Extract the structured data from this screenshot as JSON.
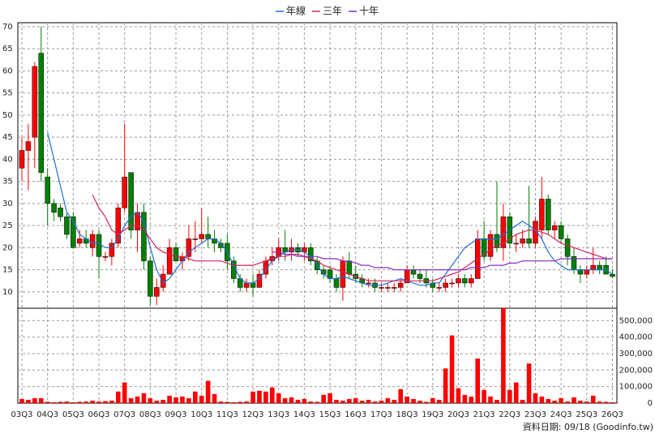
{
  "chart_data": {
    "type": "candlestick",
    "grid": true,
    "legend_position": "top",
    "note": "資料日期: 09/18 (Goodinfo.tw)",
    "categories": [
      "03Q3",
      null,
      null,
      null,
      "04Q3",
      null,
      null,
      null,
      "05Q3",
      null,
      null,
      null,
      "06Q3",
      null,
      null,
      null,
      "07Q3",
      null,
      null,
      null,
      "08Q3",
      null,
      null,
      null,
      "09Q3",
      null,
      null,
      null,
      "10Q3",
      null,
      null,
      null,
      "11Q3",
      null,
      null,
      null,
      "12Q3",
      null,
      null,
      null,
      "13Q3",
      null,
      null,
      null,
      "14Q3",
      null,
      null,
      null,
      "15Q3",
      null,
      null,
      null,
      "16Q3",
      null,
      null,
      null,
      "17Q3",
      null,
      null,
      null,
      "18Q3",
      null,
      null,
      null,
      "19Q3",
      null,
      null,
      null,
      "20Q3",
      null,
      null,
      null,
      "21Q3",
      null,
      null,
      null,
      "22Q3",
      null,
      null,
      null,
      "23Q3",
      null,
      null,
      null,
      "24Q3",
      null,
      null,
      null,
      "25Q3",
      null,
      null,
      null,
      "26Q3"
    ],
    "open": [
      38,
      42,
      45,
      64,
      36,
      30,
      29,
      27,
      27,
      21,
      22,
      20,
      23,
      18,
      18,
      21,
      29,
      37,
      24,
      28,
      17,
      9,
      11,
      14,
      20,
      17,
      18,
      22,
      22,
      23,
      22,
      21,
      21,
      17,
      13,
      11,
      12,
      11,
      14,
      17,
      18,
      20,
      19,
      20,
      19,
      20,
      17,
      15,
      15,
      13,
      11,
      17,
      14,
      13,
      12,
      12,
      11,
      11,
      11,
      11,
      12,
      15,
      14,
      13,
      12,
      11,
      11,
      12,
      12,
      13,
      12,
      13,
      22,
      18,
      23,
      20,
      27,
      21,
      21,
      22,
      21,
      24,
      31,
      24,
      25,
      22,
      18,
      15,
      14,
      15,
      16,
      16,
      14
    ],
    "high": [
      45,
      48,
      62,
      70,
      38,
      31,
      30,
      28,
      28,
      24,
      24,
      24,
      24,
      19,
      22,
      30,
      48,
      37,
      30,
      30,
      18,
      13,
      16,
      22,
      21,
      19,
      25,
      26,
      29,
      27,
      24,
      22,
      23,
      18,
      14,
      13,
      14,
      15,
      18,
      20,
      22,
      24,
      22,
      21,
      21,
      21,
      18,
      16,
      16,
      14,
      18,
      19,
      16,
      14,
      13,
      13,
      12,
      12,
      12,
      13,
      16,
      16,
      15,
      15,
      13,
      12,
      13,
      13,
      14,
      14,
      14,
      24,
      26,
      24,
      35,
      30,
      28,
      23,
      24,
      34,
      27,
      36,
      32,
      26,
      26,
      23,
      20,
      16,
      16,
      20,
      17,
      18,
      15
    ],
    "low": [
      35,
      33,
      38,
      35,
      25,
      26,
      26,
      22,
      20,
      20,
      20,
      18,
      13,
      17,
      16,
      20,
      28,
      22,
      19,
      15,
      7,
      7,
      10,
      14,
      17,
      15,
      17,
      19,
      21,
      20,
      19,
      19,
      15,
      12,
      10,
      10,
      9,
      11,
      13,
      16,
      17,
      17,
      17,
      18,
      17,
      16,
      14,
      13,
      12,
      10,
      8,
      13,
      12,
      11,
      11,
      10,
      10,
      10,
      10,
      10,
      12,
      13,
      12,
      11,
      10,
      10,
      10,
      11,
      11,
      11,
      11,
      13,
      17,
      17,
      19,
      17,
      20,
      19,
      20,
      20,
      20,
      22,
      23,
      22,
      21,
      16,
      14,
      12,
      13,
      14,
      14,
      14,
      13
    ],
    "close": [
      42,
      44,
      61,
      37,
      30,
      28,
      27,
      23,
      20,
      22,
      21,
      23,
      18,
      18,
      21,
      29,
      36,
      24,
      28,
      17,
      9,
      11,
      14,
      20,
      17,
      18,
      22,
      22,
      23,
      22,
      21,
      20,
      17,
      13,
      11,
      12,
      11,
      14,
      17,
      18,
      20,
      19,
      20,
      19,
      20,
      17,
      15,
      14,
      13,
      11,
      17,
      14,
      13,
      12,
      12,
      11,
      11,
      11,
      11,
      12,
      15,
      14,
      13,
      12,
      11,
      11,
      12,
      12,
      13,
      12,
      13,
      22,
      18,
      23,
      20,
      27,
      21,
      21,
      22,
      21,
      26,
      31,
      24,
      25,
      22,
      18,
      15,
      14,
      15,
      16,
      15,
      14,
      13.5
    ],
    "up_color": "#ff0000",
    "down_color": "#008000",
    "ylim": [
      6.3,
      70.9
    ],
    "yticks": [
      10,
      15,
      20,
      25,
      30,
      35,
      40,
      45,
      50,
      55,
      60,
      65,
      70
    ],
    "series": [
      {
        "name": "年線",
        "color": "#1f6fd6",
        "values": [
          null,
          null,
          null,
          null,
          46,
          40,
          34,
          28,
          26,
          23,
          22,
          21,
          21,
          20,
          20,
          22,
          25,
          27,
          28,
          26,
          20,
          15,
          12,
          13,
          15,
          17,
          19,
          20,
          21,
          22,
          22,
          21,
          19,
          16,
          13,
          12,
          12,
          13,
          15,
          17,
          18,
          19,
          19.5,
          19.5,
          19,
          18,
          16,
          14,
          13,
          13,
          13.5,
          13,
          12.5,
          12,
          11.5,
          11.5,
          11.5,
          12,
          12.5,
          13,
          12.5,
          12,
          11.5,
          11.5,
          12,
          12,
          14,
          16,
          18,
          20,
          21,
          22,
          22,
          22,
          22,
          23,
          24,
          25,
          26,
          25,
          24,
          22,
          19,
          17,
          16,
          15,
          15,
          15,
          15,
          15,
          15,
          15,
          14
        ]
      },
      {
        "name": "三年",
        "color": "#d6245c",
        "values": [
          null,
          null,
          null,
          null,
          null,
          null,
          null,
          null,
          null,
          null,
          null,
          32,
          29,
          27,
          24,
          23,
          24,
          25,
          25,
          24,
          22,
          20,
          19,
          18.5,
          18,
          18,
          17.5,
          17,
          17,
          17,
          17,
          17,
          16.5,
          16,
          16,
          16,
          16,
          16.5,
          17,
          17.5,
          18,
          18,
          18.5,
          18.5,
          18,
          17.5,
          17,
          16,
          15.5,
          15,
          14.5,
          14,
          13.5,
          13,
          12.5,
          12.5,
          12.5,
          12.5,
          12.5,
          12.5,
          12.5,
          12.5,
          12.5,
          12.5,
          12.5,
          13,
          13.5,
          14,
          14.5,
          15.5,
          16.5,
          17.5,
          18.5,
          19.5,
          20.5,
          21,
          22,
          23,
          23.5,
          24,
          24,
          23.5,
          23,
          22,
          21,
          20.5,
          20,
          19.5,
          19,
          18.5,
          18,
          17.5,
          17.5
        ]
      },
      {
        "name": "十年",
        "color": "#8b2cc4",
        "values": [
          null,
          null,
          null,
          null,
          null,
          null,
          null,
          null,
          null,
          null,
          null,
          null,
          null,
          null,
          null,
          null,
          null,
          null,
          null,
          null,
          null,
          null,
          null,
          null,
          null,
          null,
          null,
          null,
          null,
          null,
          null,
          null,
          null,
          null,
          null,
          null,
          null,
          null,
          null,
          19,
          19,
          18.5,
          18.5,
          18,
          18,
          18,
          18,
          17.5,
          17.5,
          17.5,
          17,
          17,
          16.5,
          16,
          16,
          15.5,
          15.5,
          15.5,
          15,
          15,
          15,
          15,
          15,
          15,
          15,
          15,
          15,
          15,
          15,
          15,
          15.5,
          15.5,
          15.5,
          16,
          16,
          16,
          16.5,
          16.5,
          17,
          17,
          17,
          17,
          17,
          17,
          17.5,
          17.5,
          17.5,
          17.5,
          17.5,
          17.5,
          17.5,
          17.5,
          17.5
        ]
      }
    ],
    "volume": {
      "color": "#ff0000",
      "ylim": [
        0,
        575000
      ],
      "yticks": [
        0,
        {
          "value": 100000,
          "label": "100,000"
        },
        {
          "value": 200000,
          "label": "200,000"
        },
        {
          "value": 300000,
          "label": "300,000"
        },
        {
          "value": 400000,
          "label": "400,000"
        },
        {
          "value": 500000,
          "label": "500,000"
        }
      ],
      "values": [
        25000,
        20000,
        30000,
        30000,
        8000,
        5000,
        8000,
        10000,
        5000,
        8000,
        10000,
        15000,
        10000,
        12000,
        15000,
        70000,
        125000,
        30000,
        40000,
        60000,
        30000,
        15000,
        20000,
        45000,
        35000,
        40000,
        30000,
        70000,
        45000,
        135000,
        55000,
        10000,
        8000,
        5000,
        8000,
        10000,
        70000,
        75000,
        70000,
        95000,
        60000,
        30000,
        35000,
        20000,
        25000,
        10000,
        8000,
        50000,
        60000,
        20000,
        15000,
        25000,
        30000,
        15000,
        20000,
        10000,
        15000,
        30000,
        20000,
        85000,
        40000,
        25000,
        15000,
        8000,
        30000,
        20000,
        210000,
        410000,
        90000,
        50000,
        40000,
        270000,
        80000,
        40000,
        20000,
        575000,
        80000,
        125000,
        20000,
        240000,
        60000,
        40000,
        25000,
        15000,
        30000,
        10000,
        35000,
        15000,
        10000,
        45000,
        10000,
        8000,
        5000
      ]
    }
  }
}
